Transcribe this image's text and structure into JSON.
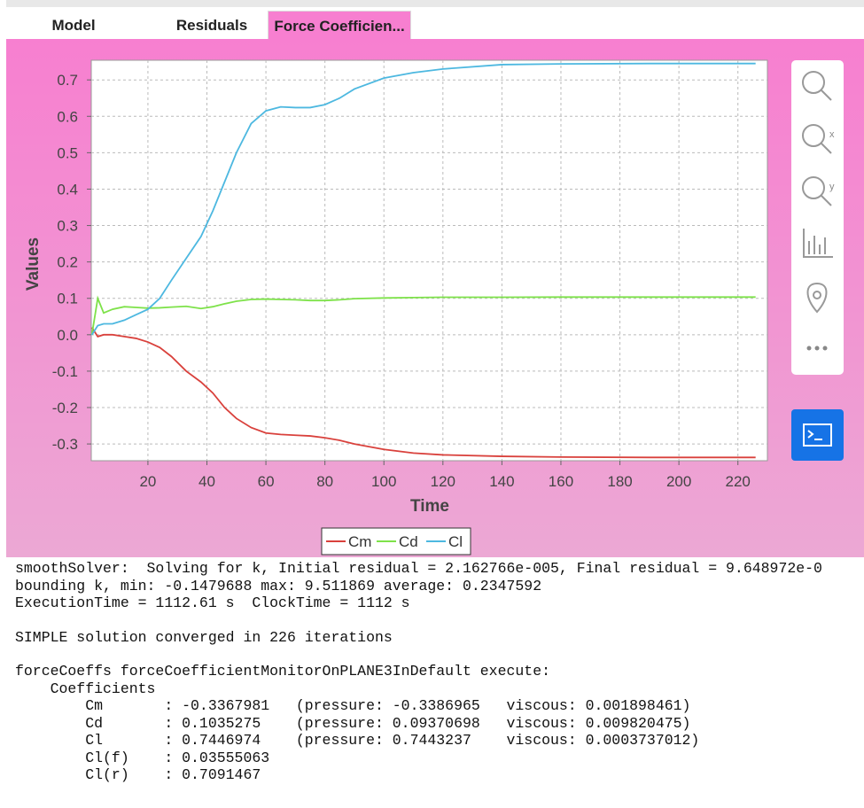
{
  "tabs": {
    "items": [
      "Model",
      "Residuals",
      "Force Coefficien..."
    ],
    "active": 2
  },
  "chart_data": {
    "type": "line",
    "xlabel": "Time",
    "ylabel": "Values",
    "x": [
      1,
      3,
      5,
      8,
      12,
      16,
      20,
      24,
      28,
      33,
      38,
      42,
      46,
      50,
      55,
      60,
      65,
      70,
      75,
      80,
      85,
      90,
      100,
      110,
      120,
      140,
      160,
      190,
      226
    ],
    "series": [
      {
        "name": "Cm",
        "color": "#d9413c",
        "values": [
          0.02,
          -0.005,
          0,
          0,
          -0.005,
          -0.01,
          -0.02,
          -0.035,
          -0.06,
          -0.1,
          -0.13,
          -0.16,
          -0.2,
          -0.23,
          -0.255,
          -0.27,
          -0.274,
          -0.276,
          -0.278,
          -0.283,
          -0.29,
          -0.3,
          -0.315,
          -0.325,
          -0.33,
          -0.334,
          -0.336,
          -0.337,
          -0.337
        ]
      },
      {
        "name": "Cd",
        "color": "#7ee24a",
        "values": [
          0.0,
          0.1,
          0.06,
          0.07,
          0.077,
          0.075,
          0.073,
          0.074,
          0.076,
          0.078,
          0.072,
          0.077,
          0.085,
          0.092,
          0.097,
          0.098,
          0.097,
          0.096,
          0.094,
          0.094,
          0.096,
          0.099,
          0.101,
          0.102,
          0.103,
          0.103,
          0.1035,
          0.1035,
          0.1035
        ]
      },
      {
        "name": "Cl",
        "color": "#4db8e0",
        "values": [
          0.0,
          0.025,
          0.03,
          0.03,
          0.04,
          0.055,
          0.07,
          0.1,
          0.15,
          0.21,
          0.27,
          0.34,
          0.42,
          0.5,
          0.58,
          0.615,
          0.626,
          0.624,
          0.624,
          0.632,
          0.65,
          0.675,
          0.705,
          0.72,
          0.73,
          0.742,
          0.744,
          0.745,
          0.745
        ]
      }
    ],
    "xlim": [
      0.8,
      230
    ],
    "ylim": [
      -0.346,
      0.754
    ],
    "xticks": [
      20,
      40,
      60,
      80,
      100,
      120,
      140,
      160,
      180,
      200,
      220
    ],
    "yticks": [
      -0.3,
      -0.2,
      -0.1,
      {
        "value": 0,
        "label": "0.0"
      },
      0.1,
      0.2,
      0.3,
      0.4,
      0.5,
      0.6,
      0.7
    ],
    "grid": true
  },
  "console": {
    "blocks": [
      [
        "smoothSolver:  Solving for k, Initial residual = 2.162766e-005, Final residual = 9.648972e-0",
        "bounding k, min: -0.1479688 max: 9.511869 average: 0.2347592",
        "ExecutionTime = 1112.61 s  ClockTime = 1112 s"
      ],
      [
        "SIMPLE solution converged in 226 iterations"
      ],
      [
        "forceCoeffs forceCoefficientMonitorOnPLANE3InDefault execute:",
        "    Coefficients",
        "        Cm       : -0.3367981   (pressure: -0.3386965   viscous: 0.001898461)",
        "        Cd       : 0.1035275    (pressure: 0.09370698   viscous: 0.009820475)",
        "        Cl       : 0.7446974    (pressure: 0.7443237    viscous: 0.0003737012)",
        "        Cl(f)    : 0.03555063",
        "        Cl(r)    : 0.7091467"
      ]
    ]
  }
}
